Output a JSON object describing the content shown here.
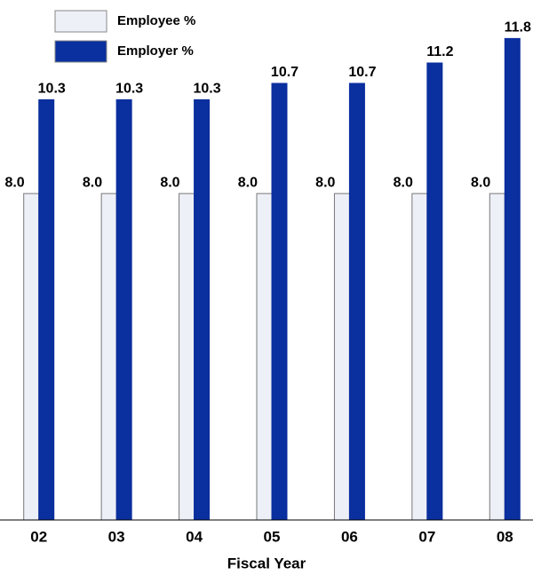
{
  "chart_data": {
    "type": "bar",
    "x_label": "Fiscal Year",
    "categories": [
      "02",
      "03",
      "04",
      "05",
      "06",
      "07",
      "08"
    ],
    "series": [
      {
        "name": "Employee %",
        "color": "#eef0f8",
        "values": [
          8.0,
          8.0,
          8.0,
          8.0,
          8.0,
          8.0,
          8.0
        ],
        "value_labels": [
          "8.0",
          "8.0",
          "8.0",
          "8.0",
          "8.0",
          "8.0",
          "8.0"
        ]
      },
      {
        "name": "Employer %",
        "color": "#0a2f9e",
        "values": [
          10.3,
          10.3,
          10.3,
          10.7,
          10.7,
          11.2,
          11.8
        ]
      }
    ],
    "ylim": [
      0,
      12.7
    ],
    "legend": "top-left"
  }
}
